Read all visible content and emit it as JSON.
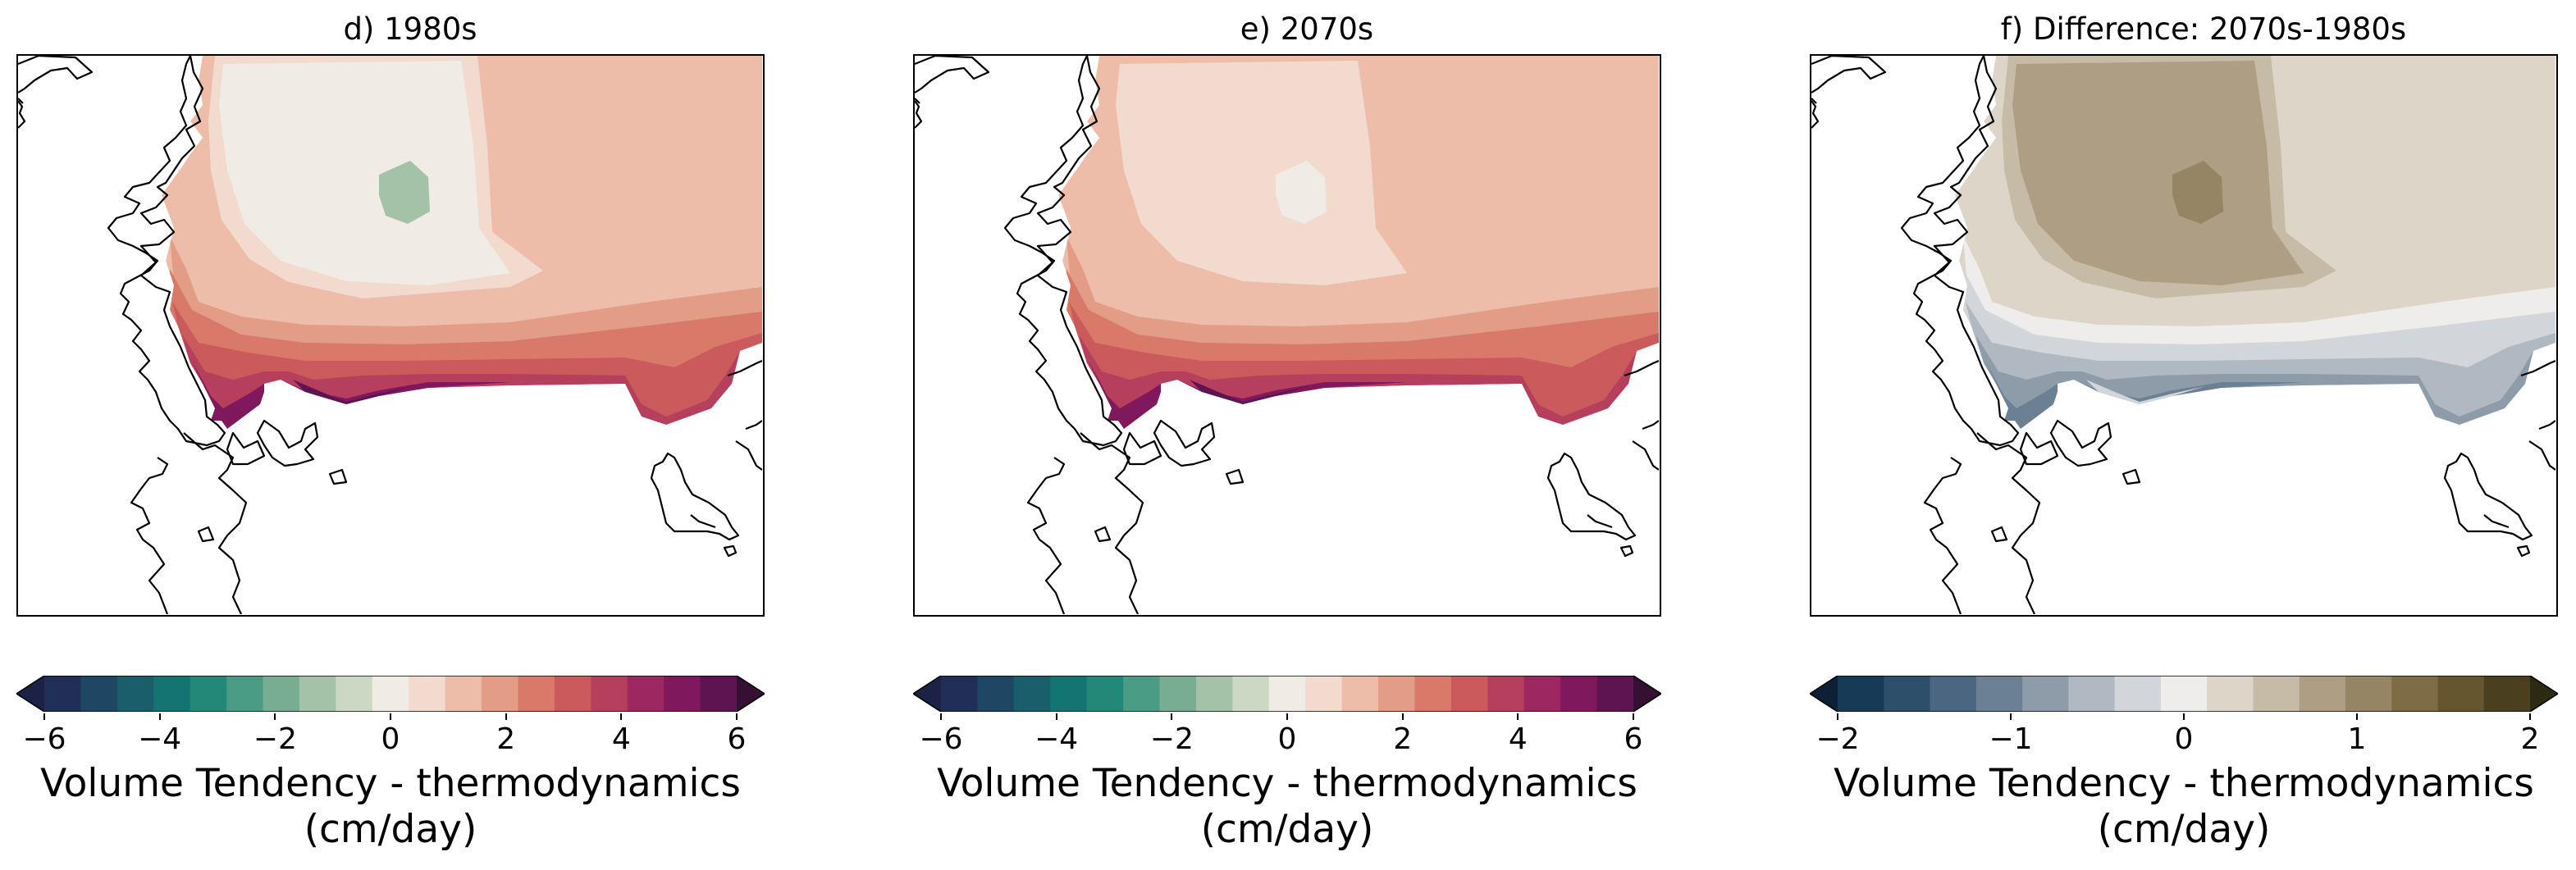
{
  "colorbar_label_line1": "Volume Tendency - thermodynamics",
  "colorbar_label_line2": "(cm/day)",
  "panels": [
    {
      "title": "d) 1980s",
      "ticks": [
        "−6",
        "−4",
        "−2",
        "0",
        "2",
        "4",
        "6"
      ],
      "range": [
        -6,
        6
      ],
      "colors": [
        "#1c2246",
        "#212f57",
        "#1f4763",
        "#1b5e6b",
        "#147471",
        "#228878",
        "#4a9c84",
        "#78ad93",
        "#a4c2a7",
        "#ccd8c4",
        "#f0ebe4",
        "#f3dacf",
        "#eebda9",
        "#e39d87",
        "#d8796a",
        "#cb5a5d",
        "#b73f5e",
        "#9d2761",
        "#80185e",
        "#5c1550",
        "#361033"
      ],
      "fill_levels": {
        "outer": 1.2,
        "mid": 0.7,
        "inner": 0.2,
        "spot": -1.2,
        "coast": [
          1.7,
          2.3,
          2.9,
          3.6,
          4.4,
          5.2
        ]
      }
    },
    {
      "title": "e) 2070s",
      "ticks": [
        "−6",
        "−4",
        "−2",
        "0",
        "2",
        "4",
        "6"
      ],
      "range": [
        -6,
        6
      ],
      "colors": [
        "#1c2246",
        "#212f57",
        "#1f4763",
        "#1b5e6b",
        "#147471",
        "#228878",
        "#4a9c84",
        "#78ad93",
        "#a4c2a7",
        "#ccd8c4",
        "#f0ebe4",
        "#f3dacf",
        "#eebda9",
        "#e39d87",
        "#d8796a",
        "#cb5a5d",
        "#b73f5e",
        "#9d2761",
        "#80185e",
        "#5c1550",
        "#361033"
      ],
      "fill_levels": {
        "outer": 1.2,
        "mid": 1.2,
        "inner": 0.5,
        "spot": 0.1,
        "coast": [
          1.7,
          2.3,
          2.9,
          3.6,
          4.4,
          5.0
        ]
      }
    },
    {
      "title": "f) Difference: 2070s-1980s",
      "ticks": [
        "−2",
        "−1",
        "0",
        "1",
        "2"
      ],
      "range": [
        -2,
        2
      ],
      "colors": [
        "#0f2036",
        "#173a56",
        "#2d4f6a",
        "#4b6680",
        "#6c8094",
        "#8e9ca9",
        "#b0b8c2",
        "#d2d5d9",
        "#efedeb",
        "#ddd6c8",
        "#c6bba6",
        "#ae9f84",
        "#968564",
        "#7e6c47",
        "#655630",
        "#4a4020",
        "#2c2a12"
      ],
      "fill_levels": {
        "outer": 0.2,
        "mid": 0.5,
        "inner": 0.7,
        "spot": 0.9,
        "coast": [
          -0.05,
          -0.3,
          -0.55,
          -0.8,
          -1.05,
          -0.3
        ]
      }
    }
  ]
}
